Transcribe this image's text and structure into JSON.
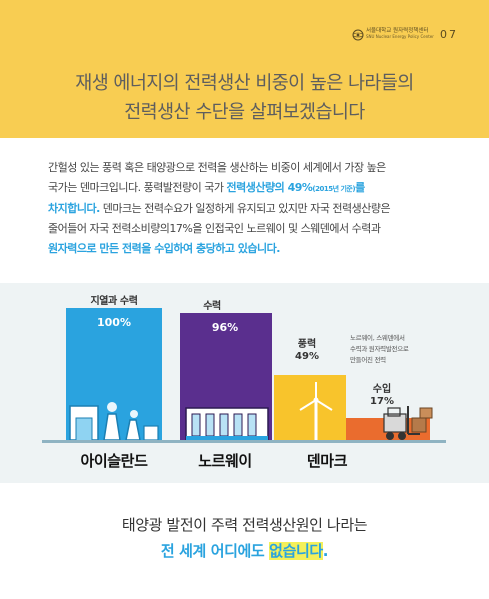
{
  "header": {
    "center_name_ko": "서울대학교 원자력정책센터",
    "center_name_en": "SNU Nuclear Energy Policy Center",
    "page_number": "07",
    "title_line1": "재생 에너지의 전력생산 비중이 높은 나라들의",
    "title_line2": "전력생산 수단을 살펴보겠습니다"
  },
  "body": {
    "p1": "간헐성 있는 풍력 혹은 태양광으로 전력을 생산하는 비중이 세계에서 가장 높은",
    "p2": "국가는 덴마크입니다. 풍력발전량이 국가 ",
    "p2_hl": "전력생산량의 49%",
    "p2_small": "(2015년 기준)",
    "p2_hl2": "를",
    "p3_hl": "차지합니다.",
    "p3": " 덴마크는 전력수요가 일정하게 유지되고 있지만 자국 전력생산량은",
    "p4": "줄어들어 자국 전력소비량의17%을 인접국인 노르웨이 및 스웨덴에서 수력과",
    "p5_hl": "원자력으로 만든 전력을 수입하여 충당하고 있습니다."
  },
  "chart_data": {
    "type": "bar",
    "categories": [
      "아이슬란드",
      "노르웨이",
      "덴마크"
    ],
    "series": [
      {
        "category": "아이슬란드",
        "source": "지열과 수력",
        "value": 100,
        "label": "100%",
        "color": "#2aa3df"
      },
      {
        "category": "노르웨이",
        "source": "수력",
        "value": 96,
        "label": "96%",
        "color": "#5a2f8e"
      },
      {
        "category": "덴마크",
        "source": "풍력",
        "value": 49,
        "label": "49%",
        "color": "#f8c42c"
      },
      {
        "category": "덴마크",
        "source": "수입",
        "value": 17,
        "label": "17%",
        "color": "#ea6c2e"
      }
    ],
    "denmark_note": [
      "노르웨이, 스웨덴에서",
      "수력과 원자력발전으로",
      "만들어진 전력"
    ],
    "ylim": [
      0,
      100
    ]
  },
  "footer": {
    "line1": "태양광 발전이 주력 전력생산원인 나라는",
    "line2_a": "전 세계 어디에도 ",
    "line2_b": "없습니다",
    "line2_c": "."
  },
  "colors": {
    "header_bg": "#f8cd52",
    "accent_blue": "#2aa3df",
    "norway_purple": "#5a2f8e",
    "wind_yellow": "#f8c42c",
    "import_orange": "#ea6c2e",
    "highlight_yellow": "#f4f05a"
  }
}
